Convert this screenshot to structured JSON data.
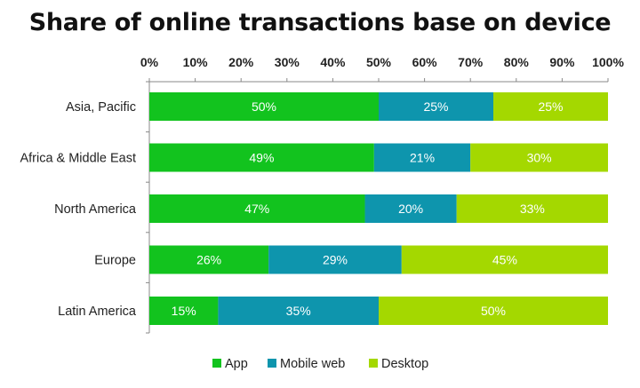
{
  "chart_data": {
    "type": "bar",
    "orientation": "horizontal",
    "stacked": true,
    "title": "Share of online transactions base on device",
    "categories": [
      "Asia, Pacific",
      "Africa & Middle East",
      "North America",
      "Europe",
      "Latin America"
    ],
    "series": [
      {
        "name": "App",
        "color": "#12c31e",
        "values": [
          50,
          49,
          47,
          26,
          15
        ]
      },
      {
        "name": "Mobile web",
        "color": "#0e95ad",
        "values": [
          25,
          21,
          20,
          29,
          35
        ]
      },
      {
        "name": "Desktop",
        "color": "#a4d800",
        "values": [
          25,
          30,
          33,
          45,
          50
        ]
      }
    ],
    "data_labels": [
      [
        "50%",
        "49%",
        "47%",
        "26%",
        "15%"
      ],
      [
        "25%",
        "21%",
        "20%",
        "29%",
        "35%"
      ],
      [
        "25%",
        "30%",
        "33%",
        "45%",
        "50%"
      ]
    ],
    "xaxis": {
      "range": [
        0,
        100
      ],
      "ticks": [
        0,
        10,
        20,
        30,
        40,
        50,
        60,
        70,
        80,
        90,
        100
      ],
      "tick_labels": [
        "0%",
        "10%",
        "20%",
        "30%",
        "40%",
        "50%",
        "60%",
        "70%",
        "80%",
        "90%",
        "100%"
      ],
      "position": "top"
    },
    "grid": false,
    "legend": {
      "position": "bottom",
      "entries": [
        "App",
        "Mobile web",
        "Desktop"
      ]
    }
  }
}
